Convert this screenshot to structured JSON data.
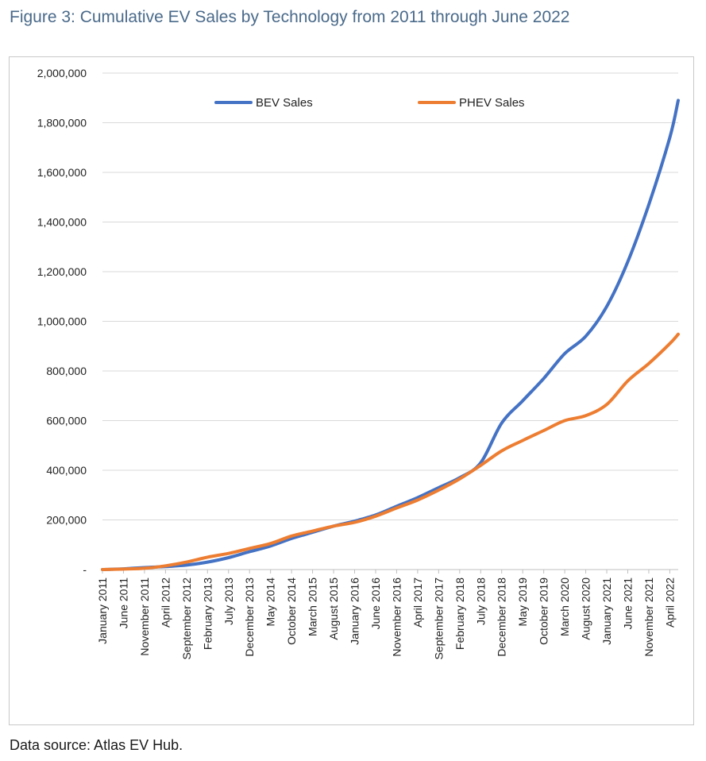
{
  "figure": {
    "title": "Figure 3: Cumulative EV Sales by Technology from 2011 through June 2022",
    "source": "Data source: Atlas EV Hub."
  },
  "chart_data": {
    "type": "line",
    "title": "",
    "xlabel": "",
    "ylabel": "",
    "ylim": [
      0,
      2000000
    ],
    "yticks": [
      0,
      200000,
      400000,
      600000,
      800000,
      1000000,
      1200000,
      1400000,
      1600000,
      1800000,
      2000000
    ],
    "ytick_labels": [
      "-",
      "200,000",
      "400,000",
      "600,000",
      "800,000",
      "1,000,000",
      "1,200,000",
      "1,400,000",
      "1,600,000",
      "1,800,000",
      "2,000,000"
    ],
    "x_start": "January 2011",
    "x_end": "June 2022",
    "tick_labels": [
      "January 2011",
      "June 2011",
      "November 2011",
      "April 2012",
      "September 2012",
      "February 2013",
      "July 2013",
      "December 2013",
      "May 2014",
      "October 2014",
      "March 2015",
      "August 2015",
      "January 2016",
      "June 2016",
      "November 2016",
      "April 2017",
      "September 2017",
      "February 2018",
      "July 2018",
      "December 2018",
      "May 2019",
      "October 2019",
      "March 2020",
      "August 2020",
      "January 2021",
      "June 2021",
      "November 2021",
      "April 2022"
    ],
    "grid": true,
    "legend_position": "top",
    "series": [
      {
        "name": "BEV Sales",
        "color": "#4472c4",
        "points": [
          [
            "January 2011",
            0
          ],
          [
            "June 2011",
            3000
          ],
          [
            "November 2011",
            8000
          ],
          [
            "April 2012",
            12000
          ],
          [
            "September 2012",
            18000
          ],
          [
            "February 2013",
            30000
          ],
          [
            "July 2013",
            48000
          ],
          [
            "December 2013",
            72000
          ],
          [
            "May 2014",
            95000
          ],
          [
            "October 2014",
            125000
          ],
          [
            "March 2015",
            150000
          ],
          [
            "August 2015",
            175000
          ],
          [
            "January 2016",
            195000
          ],
          [
            "June 2016",
            220000
          ],
          [
            "November 2016",
            255000
          ],
          [
            "April 2017",
            290000
          ],
          [
            "September 2017",
            330000
          ],
          [
            "February 2018",
            370000
          ],
          [
            "July 2018",
            430000
          ],
          [
            "December 2018",
            590000
          ],
          [
            "May 2019",
            680000
          ],
          [
            "October 2019",
            770000
          ],
          [
            "March 2020",
            870000
          ],
          [
            "August 2020",
            940000
          ],
          [
            "January 2021",
            1060000
          ],
          [
            "June 2021",
            1240000
          ],
          [
            "November 2021",
            1470000
          ],
          [
            "April 2022",
            1740000
          ],
          [
            "June 2022",
            1890000
          ]
        ]
      },
      {
        "name": "PHEV Sales",
        "color": "#ed7d31",
        "points": [
          [
            "January 2011",
            0
          ],
          [
            "June 2011",
            2000
          ],
          [
            "November 2011",
            5000
          ],
          [
            "April 2012",
            15000
          ],
          [
            "September 2012",
            30000
          ],
          [
            "February 2013",
            50000
          ],
          [
            "July 2013",
            65000
          ],
          [
            "December 2013",
            85000
          ],
          [
            "May 2014",
            105000
          ],
          [
            "October 2014",
            135000
          ],
          [
            "March 2015",
            155000
          ],
          [
            "August 2015",
            175000
          ],
          [
            "January 2016",
            190000
          ],
          [
            "June 2016",
            215000
          ],
          [
            "November 2016",
            248000
          ],
          [
            "April 2017",
            280000
          ],
          [
            "September 2017",
            320000
          ],
          [
            "February 2018",
            365000
          ],
          [
            "July 2018",
            420000
          ],
          [
            "December 2018",
            478000
          ],
          [
            "May 2019",
            520000
          ],
          [
            "October 2019",
            560000
          ],
          [
            "March 2020",
            600000
          ],
          [
            "August 2020",
            620000
          ],
          [
            "January 2021",
            665000
          ],
          [
            "June 2021",
            760000
          ],
          [
            "November 2021",
            830000
          ],
          [
            "April 2022",
            910000
          ],
          [
            "June 2022",
            948000
          ]
        ]
      }
    ]
  }
}
